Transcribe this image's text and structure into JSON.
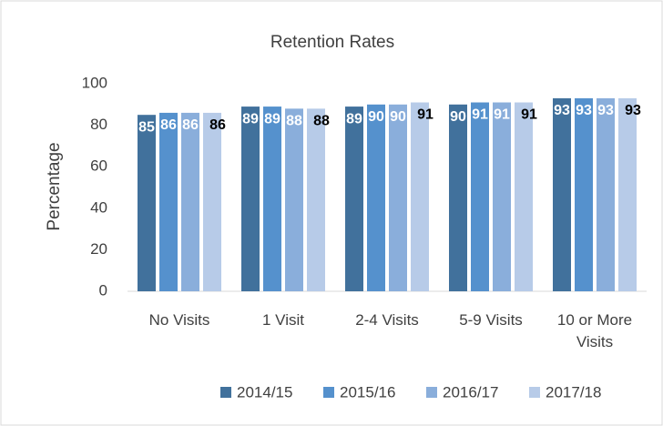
{
  "chart_data": {
    "type": "bar",
    "title": "Retention Rates",
    "y_label": "Percentage",
    "categories": [
      "No Visits",
      "1 Visit",
      "2-4 Visits",
      "5-9 Visits",
      "10 or More Visits"
    ],
    "series": [
      {
        "name": "2014/15",
        "color": "#41719c",
        "values": [
          85,
          89,
          89,
          90,
          93
        ]
      },
      {
        "name": "2015/16",
        "color": "#5591cd",
        "values": [
          86,
          89,
          90,
          91,
          93
        ]
      },
      {
        "name": "2016/17",
        "color": "#8aaedb",
        "values": [
          86,
          88,
          90,
          91,
          93
        ]
      },
      {
        "name": "2017/18",
        "color": "#b7cbe8",
        "values": [
          86,
          88,
          91,
          91,
          93
        ]
      }
    ],
    "ylim": [
      0,
      100
    ],
    "yticks": [
      0,
      20,
      40,
      60,
      80,
      100
    ],
    "grid": false,
    "legend": "bottom"
  }
}
